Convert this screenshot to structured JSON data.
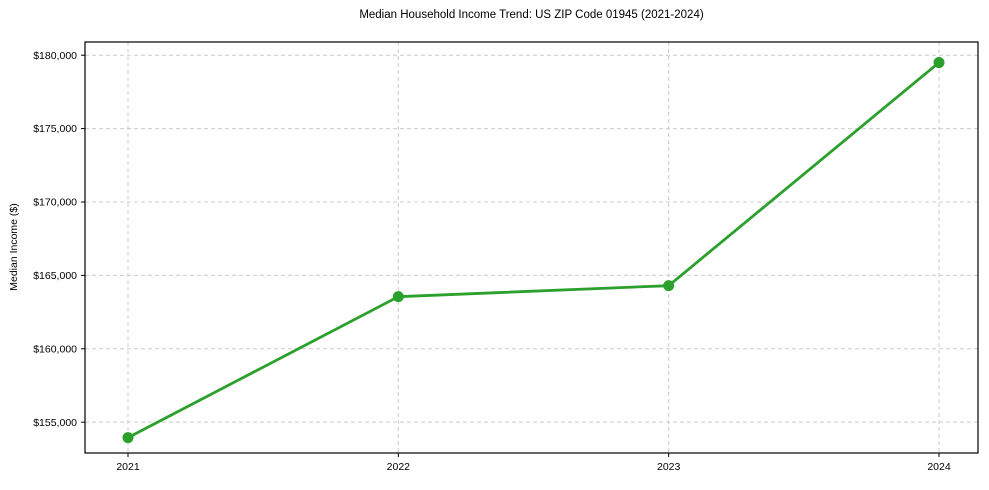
{
  "chart_data": {
    "type": "line",
    "title": "Median Household Income Trend: US ZIP Code 01945 (2021-2024)",
    "xlabel": "",
    "ylabel": "Median Income ($)",
    "categories": [
      "2021",
      "2022",
      "2023",
      "2024"
    ],
    "series": [
      {
        "name": "Median Household Income",
        "values": [
          153950,
          163550,
          164300,
          179500
        ]
      }
    ],
    "ylim": [
      152900,
      180900
    ],
    "yticks": [
      155000,
      160000,
      165000,
      170000,
      175000,
      180000
    ],
    "ytick_labels": [
      "$155,000",
      "$160,000",
      "$165,000",
      "$170,000",
      "$175,000",
      "$180,000"
    ],
    "grid": true,
    "grid_style": "dashed",
    "legend_position": "none",
    "colors": {
      "line": "#2ca02c",
      "marker": "#2ca02c",
      "grid": "#cccccc",
      "spine": "#000000",
      "text": "#000000",
      "background": "#ffffff"
    }
  }
}
